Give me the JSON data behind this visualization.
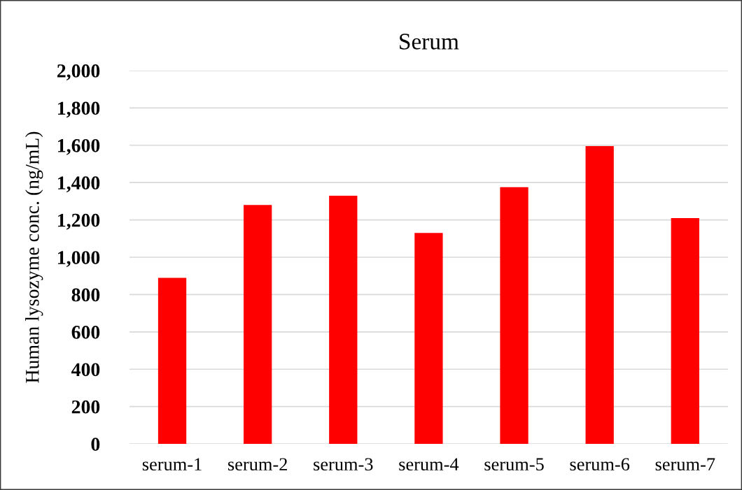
{
  "chart_data": {
    "type": "bar",
    "title": "Serum",
    "ylabel": "Human lysozyme conc. (ng/mL)",
    "categories": [
      "serum-1",
      "serum-2",
      "serum-3",
      "serum-4",
      "serum-5",
      "serum-6",
      "serum-7"
    ],
    "values": [
      890,
      1280,
      1330,
      1130,
      1375,
      1595,
      1210
    ],
    "color": "#ff0000",
    "ylim": [
      0,
      2000
    ],
    "yticks": [
      0,
      200,
      400,
      600,
      800,
      {
        "value": 1000,
        "label": "1,000"
      },
      {
        "value": 1200,
        "label": "1,200"
      },
      {
        "value": 1400,
        "label": "1,400"
      },
      {
        "value": 1600,
        "label": "1,600"
      },
      {
        "value": 1800,
        "label": "1,800"
      },
      {
        "value": 2000,
        "label": "2,000"
      }
    ],
    "grid": "y"
  }
}
